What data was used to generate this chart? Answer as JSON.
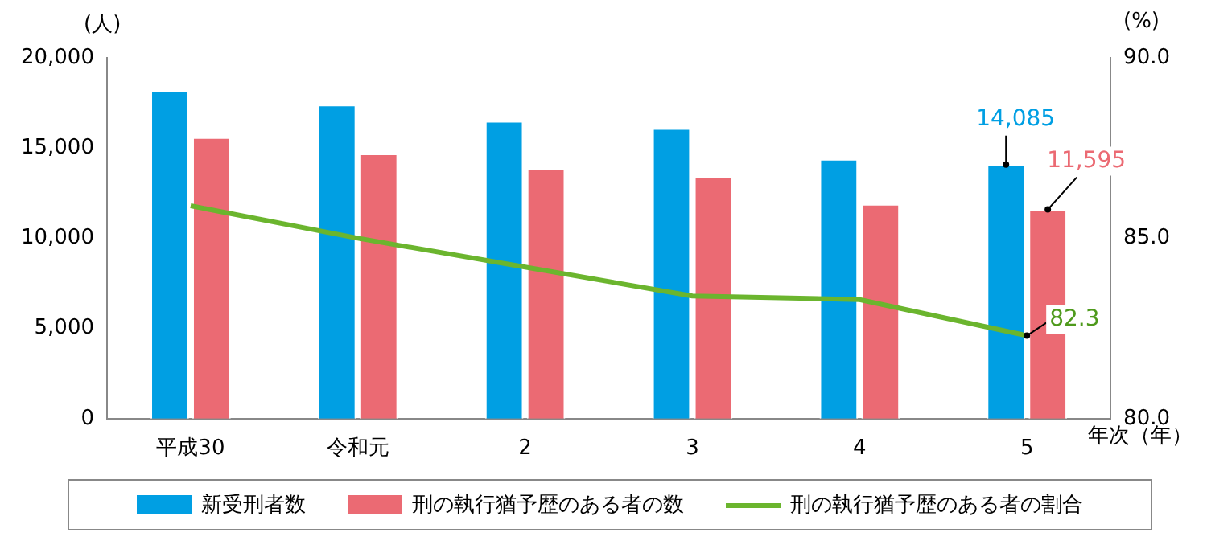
{
  "chart_data": {
    "type": "bar",
    "ylabel": "(人)",
    "y2label": "(%)",
    "xlabel": "年次（年）",
    "categories": [
      "平成30",
      "令和元",
      "2",
      "3",
      "4",
      "5"
    ],
    "series": [
      {
        "name": "新受刑者数",
        "color": "#009fe3",
        "values": [
          18200,
          17400,
          16500,
          16100,
          14400,
          14085
        ],
        "value_labels": [
          null,
          null,
          null,
          null,
          null,
          "14,085"
        ]
      },
      {
        "name": "刑の執行猶予歴のある者の数",
        "color": "#eb6a73",
        "values": [
          15600,
          14700,
          13900,
          13400,
          11900,
          11595
        ],
        "value_labels": [
          null,
          null,
          null,
          null,
          null,
          "11,595"
        ]
      },
      {
        "name": "刑の執行猶予歴のある者の割合",
        "type": "line",
        "axis": "y2",
        "color": "#6bb52e",
        "values": [
          85.9,
          85.0,
          84.2,
          83.4,
          83.3,
          82.3
        ],
        "value_labels": [
          null,
          null,
          null,
          null,
          null,
          "82.3"
        ]
      }
    ],
    "ylim": [
      0,
      20000
    ],
    "yticks": [
      {
        "value": 0,
        "label": "0"
      },
      {
        "value": 5000,
        "label": "5,000"
      },
      {
        "value": 10000,
        "label": "10,000"
      },
      {
        "value": 15000,
        "label": "15,000"
      },
      {
        "value": 20000,
        "label": "20,000"
      }
    ],
    "y2lim": [
      80,
      90
    ],
    "y2ticks": [
      {
        "value": 80,
        "label": "80.0"
      },
      {
        "value": 85,
        "label": "85.0"
      },
      {
        "value": 90,
        "label": "90.0"
      }
    ],
    "grid": false,
    "legend": "bottom",
    "marker": "none"
  }
}
